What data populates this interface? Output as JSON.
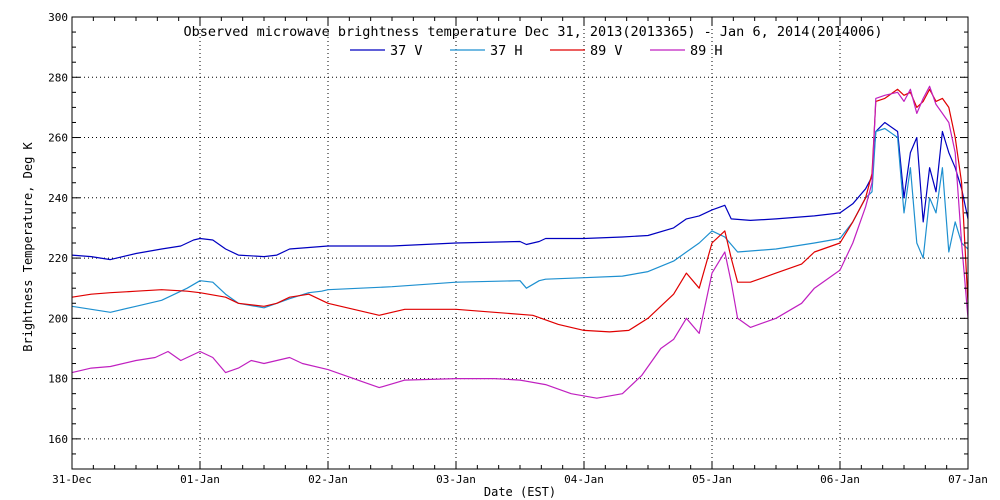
{
  "chart_data": {
    "type": "line",
    "title": "Observed microwave brightness temperature Dec 31, 2013(2013365) - Jan  6, 2014(2014006)",
    "xlabel": "Date (EST)",
    "ylabel": "Brightness Temperature, Deg K",
    "xlim": [
      0,
      7
    ],
    "ylim": [
      150,
      300
    ],
    "x_ticks": [
      {
        "value": 0,
        "label": "31-Dec"
      },
      {
        "value": 1,
        "label": "01-Jan"
      },
      {
        "value": 2,
        "label": "02-Jan"
      },
      {
        "value": 3,
        "label": "03-Jan"
      },
      {
        "value": 4,
        "label": "04-Jan"
      },
      {
        "value": 5,
        "label": "05-Jan"
      },
      {
        "value": 6,
        "label": "06-Jan"
      },
      {
        "value": 7,
        "label": "07-Jan"
      }
    ],
    "y_ticks": [
      {
        "value": 160,
        "label": "160"
      },
      {
        "value": 180,
        "label": "180"
      },
      {
        "value": 200,
        "label": "200"
      },
      {
        "value": 220,
        "label": "220"
      },
      {
        "value": 240,
        "label": "240"
      },
      {
        "value": 260,
        "label": "260"
      },
      {
        "value": 280,
        "label": "280"
      },
      {
        "value": 300,
        "label": "300"
      }
    ],
    "grid": true,
    "legend_position": "top-center",
    "series": [
      {
        "name": "37 V",
        "color": "#0000c0",
        "points": [
          [
            0,
            221
          ],
          [
            0.15,
            220.5
          ],
          [
            0.3,
            219.5
          ],
          [
            0.5,
            221.5
          ],
          [
            0.7,
            223
          ],
          [
            0.85,
            224
          ],
          [
            0.95,
            226
          ],
          [
            1.0,
            226.5
          ],
          [
            1.1,
            226
          ],
          [
            1.2,
            223
          ],
          [
            1.3,
            221
          ],
          [
            1.5,
            220.5
          ],
          [
            1.6,
            221
          ],
          [
            1.7,
            223
          ],
          [
            1.85,
            223.5
          ],
          [
            2.0,
            224
          ],
          [
            2.5,
            224
          ],
          [
            3.0,
            225
          ],
          [
            3.5,
            225.5
          ],
          [
            3.55,
            224.5
          ],
          [
            3.65,
            225.5
          ],
          [
            3.7,
            226.5
          ],
          [
            4.0,
            226.5
          ],
          [
            4.3,
            227
          ],
          [
            4.5,
            227.5
          ],
          [
            4.7,
            230
          ],
          [
            4.8,
            233
          ],
          [
            4.9,
            234
          ],
          [
            5.0,
            236
          ],
          [
            5.1,
            237.5
          ],
          [
            5.15,
            233
          ],
          [
            5.3,
            232.5
          ],
          [
            5.5,
            233
          ],
          [
            5.8,
            234
          ],
          [
            6.0,
            235
          ],
          [
            6.1,
            238
          ],
          [
            6.2,
            243
          ],
          [
            6.25,
            247
          ],
          [
            6.28,
            262
          ],
          [
            6.35,
            265
          ],
          [
            6.45,
            262
          ],
          [
            6.5,
            240
          ],
          [
            6.55,
            255
          ],
          [
            6.6,
            260
          ],
          [
            6.65,
            232
          ],
          [
            6.7,
            250
          ],
          [
            6.75,
            242
          ],
          [
            6.8,
            262
          ],
          [
            6.85,
            255
          ],
          [
            6.9,
            250
          ],
          [
            6.95,
            243
          ],
          [
            7.0,
            233
          ]
        ]
      },
      {
        "name": "37 H",
        "color": "#1e90d0",
        "points": [
          [
            0,
            204
          ],
          [
            0.15,
            203
          ],
          [
            0.3,
            202
          ],
          [
            0.5,
            204
          ],
          [
            0.7,
            206
          ],
          [
            0.9,
            210
          ],
          [
            1.0,
            212.5
          ],
          [
            1.1,
            212
          ],
          [
            1.2,
            208
          ],
          [
            1.3,
            205
          ],
          [
            1.5,
            203.5
          ],
          [
            1.6,
            205
          ],
          [
            1.7,
            206.5
          ],
          [
            1.85,
            208.5
          ],
          [
            1.95,
            209
          ],
          [
            2.0,
            209.5
          ],
          [
            2.5,
            210.5
          ],
          [
            3.0,
            212
          ],
          [
            3.5,
            212.5
          ],
          [
            3.55,
            210
          ],
          [
            3.65,
            212.5
          ],
          [
            3.7,
            213
          ],
          [
            4.0,
            213.5
          ],
          [
            4.3,
            214
          ],
          [
            4.5,
            215.5
          ],
          [
            4.7,
            219
          ],
          [
            4.8,
            222
          ],
          [
            4.9,
            225
          ],
          [
            5.0,
            229
          ],
          [
            5.1,
            227
          ],
          [
            5.2,
            222
          ],
          [
            5.5,
            223
          ],
          [
            5.8,
            225
          ],
          [
            6.0,
            226.5
          ],
          [
            6.1,
            232
          ],
          [
            6.2,
            240
          ],
          [
            6.25,
            242
          ],
          [
            6.28,
            262
          ],
          [
            6.35,
            263
          ],
          [
            6.45,
            260
          ],
          [
            6.5,
            235
          ],
          [
            6.55,
            250
          ],
          [
            6.6,
            225
          ],
          [
            6.65,
            220
          ],
          [
            6.7,
            240
          ],
          [
            6.75,
            235
          ],
          [
            6.8,
            250
          ],
          [
            6.85,
            222
          ],
          [
            6.9,
            232
          ],
          [
            6.95,
            225
          ],
          [
            7.0,
            223
          ]
        ]
      },
      {
        "name": "89 V",
        "color": "#e00000",
        "points": [
          [
            0,
            207
          ],
          [
            0.15,
            208
          ],
          [
            0.3,
            208.5
          ],
          [
            0.5,
            209
          ],
          [
            0.7,
            209.5
          ],
          [
            0.9,
            209
          ],
          [
            1.0,
            208.5
          ],
          [
            1.2,
            207
          ],
          [
            1.3,
            205
          ],
          [
            1.5,
            204
          ],
          [
            1.6,
            205
          ],
          [
            1.7,
            207
          ],
          [
            1.85,
            208
          ],
          [
            2.0,
            205
          ],
          [
            2.2,
            203
          ],
          [
            2.4,
            201
          ],
          [
            2.6,
            203
          ],
          [
            3.0,
            203
          ],
          [
            3.3,
            202
          ],
          [
            3.6,
            201
          ],
          [
            3.8,
            198
          ],
          [
            4.0,
            196
          ],
          [
            4.2,
            195.5
          ],
          [
            4.35,
            196
          ],
          [
            4.5,
            200
          ],
          [
            4.7,
            208
          ],
          [
            4.8,
            215
          ],
          [
            4.9,
            210
          ],
          [
            5.0,
            225
          ],
          [
            5.1,
            229
          ],
          [
            5.15,
            220
          ],
          [
            5.2,
            212
          ],
          [
            5.3,
            212
          ],
          [
            5.5,
            215
          ],
          [
            5.7,
            218
          ],
          [
            5.8,
            222
          ],
          [
            6.0,
            225
          ],
          [
            6.1,
            232
          ],
          [
            6.2,
            240
          ],
          [
            6.25,
            248
          ],
          [
            6.28,
            272
          ],
          [
            6.35,
            273
          ],
          [
            6.45,
            276
          ],
          [
            6.5,
            274
          ],
          [
            6.55,
            275
          ],
          [
            6.6,
            270
          ],
          [
            6.65,
            272
          ],
          [
            6.7,
            276
          ],
          [
            6.75,
            272
          ],
          [
            6.8,
            273
          ],
          [
            6.85,
            270
          ],
          [
            6.9,
            260
          ],
          [
            6.95,
            245
          ],
          [
            7.0,
            205
          ]
        ]
      },
      {
        "name": "89 H",
        "color": "#c020c0",
        "points": [
          [
            0,
            182
          ],
          [
            0.15,
            183.5
          ],
          [
            0.3,
            184
          ],
          [
            0.5,
            186
          ],
          [
            0.65,
            187
          ],
          [
            0.75,
            189
          ],
          [
            0.85,
            186
          ],
          [
            0.95,
            188
          ],
          [
            1.0,
            189
          ],
          [
            1.1,
            187
          ],
          [
            1.2,
            182
          ],
          [
            1.3,
            183.5
          ],
          [
            1.4,
            186
          ],
          [
            1.5,
            185
          ],
          [
            1.6,
            186
          ],
          [
            1.7,
            187
          ],
          [
            1.8,
            185
          ],
          [
            2.0,
            183
          ],
          [
            2.2,
            180
          ],
          [
            2.4,
            177
          ],
          [
            2.6,
            179.5
          ],
          [
            3.0,
            180
          ],
          [
            3.3,
            180
          ],
          [
            3.5,
            179.5
          ],
          [
            3.7,
            178
          ],
          [
            3.9,
            175
          ],
          [
            4.1,
            173.5
          ],
          [
            4.3,
            175
          ],
          [
            4.45,
            181
          ],
          [
            4.6,
            190
          ],
          [
            4.7,
            193
          ],
          [
            4.8,
            200
          ],
          [
            4.9,
            195
          ],
          [
            5.0,
            215
          ],
          [
            5.1,
            222
          ],
          [
            5.15,
            212
          ],
          [
            5.2,
            200
          ],
          [
            5.3,
            197
          ],
          [
            5.5,
            200
          ],
          [
            5.7,
            205
          ],
          [
            5.8,
            210
          ],
          [
            6.0,
            216
          ],
          [
            6.1,
            225
          ],
          [
            6.2,
            237
          ],
          [
            6.25,
            245
          ],
          [
            6.28,
            273
          ],
          [
            6.35,
            274
          ],
          [
            6.45,
            275
          ],
          [
            6.5,
            272
          ],
          [
            6.55,
            276
          ],
          [
            6.6,
            268
          ],
          [
            6.65,
            273
          ],
          [
            6.7,
            277
          ],
          [
            6.75,
            271
          ],
          [
            6.8,
            268
          ],
          [
            6.85,
            265
          ],
          [
            6.9,
            255
          ],
          [
            6.95,
            225
          ],
          [
            7.0,
            200
          ]
        ]
      }
    ]
  }
}
